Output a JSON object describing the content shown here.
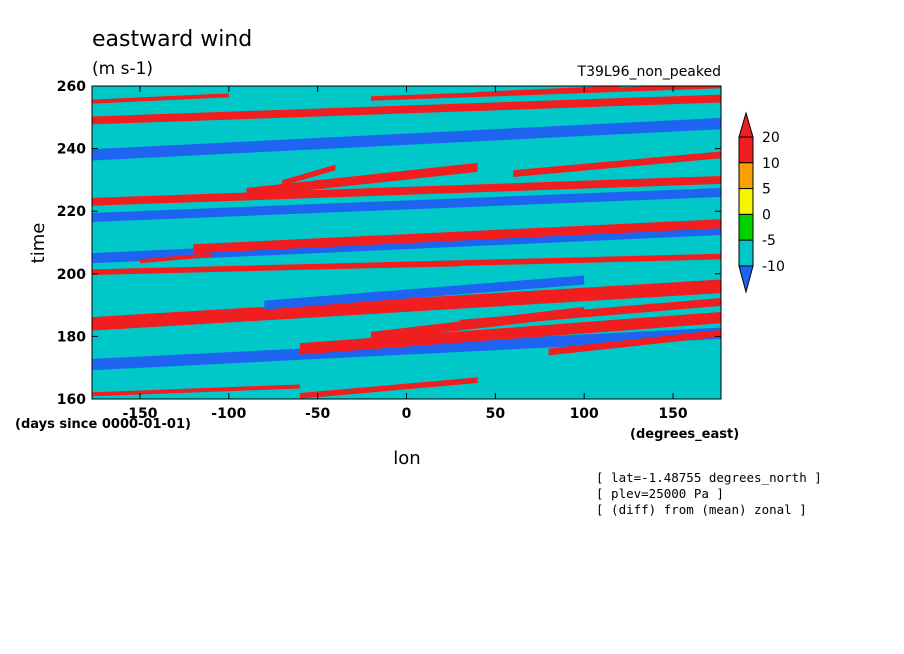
{
  "chart_data": {
    "type": "heatmap",
    "title": "eastward wind",
    "units": "(m s-1)",
    "run_label": "T39L96_non_peaked",
    "xlabel": "lon",
    "ylabel": "time",
    "x_unit": "(degrees_east)",
    "y_unit": "(days since 0000-01-01)",
    "xlim": [
      -177,
      177
    ],
    "ylim": [
      160,
      260
    ],
    "x_ticks": [
      -150,
      -100,
      -50,
      0,
      50,
      100,
      150
    ],
    "y_ticks": [
      160,
      180,
      200,
      220,
      240,
      260
    ],
    "colorbar": {
      "levels": [
        -10,
        -5,
        0,
        5,
        10,
        20
      ],
      "level_labels": [
        "-10",
        "-5",
        "0",
        "5",
        "10",
        "20"
      ],
      "colors": [
        "#1e64f0",
        "#00c8c8",
        "#00d200",
        "#f5f500",
        "#faa000",
        "#f01e1e"
      ],
      "extend": "both",
      "below_color": "#1e64f0",
      "above_color": "#f01e1e"
    },
    "background_color": "#00c8c8",
    "bands": [
      {
        "lon0": -177,
        "t0": 161.5,
        "lon1": -60,
        "t1": 164.0,
        "value": 22
      },
      {
        "lon0": -60,
        "t0": 161.0,
        "lon1": 40,
        "t1": 166.0,
        "value": 12
      },
      {
        "lon0": -177,
        "t0": 171.0,
        "lon1": 177,
        "t1": 181.0,
        "value": -12
      },
      {
        "lon0": -60,
        "t0": 176.0,
        "lon1": 177,
        "t1": 186.0,
        "value": 13
      },
      {
        "lon0": 80,
        "t0": 175.0,
        "lon1": 177,
        "t1": 181.0,
        "value": 22
      },
      {
        "lon0": -20,
        "t0": 180.0,
        "lon1": 100,
        "t1": 188.0,
        "value": 21
      },
      {
        "lon0": 30,
        "t0": 184.0,
        "lon1": 177,
        "t1": 191.0,
        "value": 21
      },
      {
        "lon0": -177,
        "t0": 184.0,
        "lon1": 177,
        "t1": 196.0,
        "value": 12
      },
      {
        "lon0": -80,
        "t0": 190.0,
        "lon1": 100,
        "t1": 198.0,
        "value": -12
      },
      {
        "lon0": -177,
        "t0": 200.5,
        "lon1": 177,
        "t1": 205.5,
        "value": 12
      },
      {
        "lon0": -150,
        "t0": 201.0,
        "lon1": 30,
        "t1": 203.0,
        "value": 21
      },
      {
        "lon0": -177,
        "t0": 205.0,
        "lon1": 177,
        "t1": 214.0,
        "value": -12
      },
      {
        "lon0": -150,
        "t0": 204.0,
        "lon1": -110,
        "t1": 206.0,
        "value": 22
      },
      {
        "lon0": -120,
        "t0": 208.0,
        "lon1": 177,
        "t1": 216.0,
        "value": 11
      },
      {
        "lon0": -177,
        "t0": 218.0,
        "lon1": 177,
        "t1": 226.0,
        "value": -12
      },
      {
        "lon0": -177,
        "t0": 223.0,
        "lon1": 177,
        "t1": 230.0,
        "value": 12
      },
      {
        "lon0": -90,
        "t0": 226.0,
        "lon1": 40,
        "t1": 234.0,
        "value": 12
      },
      {
        "lon0": -70,
        "t0": 229.0,
        "lon1": -40,
        "t1": 234.0,
        "value": 22
      },
      {
        "lon0": 60,
        "t0": 232.0,
        "lon1": 177,
        "t1": 238.0,
        "value": 12
      },
      {
        "lon0": -177,
        "t0": 238.0,
        "lon1": 177,
        "t1": 248.0,
        "value": -12
      },
      {
        "lon0": -177,
        "t0": 249.0,
        "lon1": 177,
        "t1": 256.0,
        "value": 12
      },
      {
        "lon0": -177,
        "t0": 255.0,
        "lon1": -100,
        "t1": 257.0,
        "value": 21
      },
      {
        "lon0": -20,
        "t0": 256.0,
        "lon1": 177,
        "t1": 260.0,
        "value": 13
      },
      {
        "lon0": 40,
        "t0": 257.5,
        "lon1": 120,
        "t1": 259.5,
        "value": 21
      }
    ]
  },
  "notes": [
    "[ lat=-1.48755 degrees_north ]",
    "[ plev=25000 Pa ]",
    "[ (diff) from (mean) zonal ]"
  ]
}
